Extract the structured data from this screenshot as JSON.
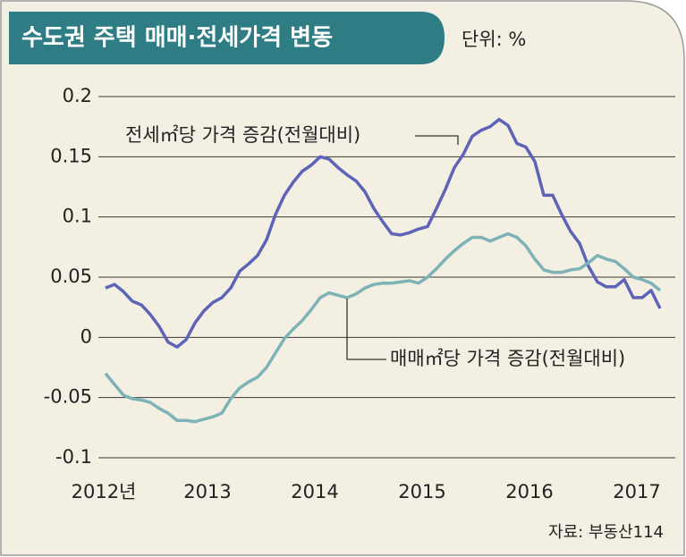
{
  "chart_data": {
    "type": "line",
    "title": "수도권 주택 매매·전세가격 변동",
    "unit": "단위: %",
    "source": "자료: 부동산114",
    "categories": [
      "2012년",
      null,
      null,
      null,
      null,
      null,
      null,
      null,
      null,
      null,
      null,
      null,
      "2013",
      null,
      null,
      null,
      null,
      null,
      null,
      null,
      null,
      null,
      null,
      null,
      "2014",
      null,
      null,
      null,
      null,
      null,
      null,
      null,
      null,
      null,
      null,
      null,
      "2015",
      null,
      null,
      null,
      null,
      null,
      null,
      null,
      null,
      null,
      null,
      null,
      "2016",
      null,
      null,
      null,
      null,
      null,
      null,
      null,
      null,
      null,
      null,
      null,
      "2017",
      null,
      null
    ],
    "series": [
      {
        "name": "전세㎡당 가격 증감(전월대비)",
        "color": "#5d64b8",
        "values": [
          0.041,
          0.044,
          0.038,
          0.03,
          0.027,
          0.019,
          0.009,
          -0.004,
          -0.008,
          -0.002,
          0.012,
          0.022,
          0.029,
          0.033,
          0.041,
          0.055,
          0.061,
          0.068,
          0.081,
          0.102,
          0.118,
          0.129,
          0.138,
          0.143,
          0.15,
          0.148,
          0.141,
          0.135,
          0.13,
          0.121,
          0.107,
          0.096,
          0.086,
          0.085,
          0.087,
          0.09,
          0.092,
          0.107,
          0.123,
          0.141,
          0.152,
          0.167,
          0.172,
          0.175,
          0.181,
          0.176,
          0.161,
          0.158,
          0.146,
          0.118,
          0.118,
          0.102,
          0.088,
          0.078,
          0.059,
          0.046,
          0.042,
          0.042,
          0.048,
          0.033,
          0.033,
          0.039,
          0.024
        ]
      },
      {
        "name": "매매㎡당 가격 증감(전월대비)",
        "color": "#7db3b6",
        "values": [
          -0.03,
          -0.039,
          -0.048,
          -0.051,
          -0.052,
          -0.054,
          -0.059,
          -0.063,
          -0.069,
          -0.069,
          -0.07,
          -0.068,
          -0.066,
          -0.063,
          -0.051,
          -0.042,
          -0.037,
          -0.033,
          -0.025,
          -0.013,
          -0.001,
          0.007,
          0.014,
          0.023,
          0.033,
          0.037,
          0.035,
          0.033,
          0.036,
          0.041,
          0.044,
          0.045,
          0.045,
          0.046,
          0.047,
          0.045,
          0.05,
          0.057,
          0.065,
          0.072,
          0.078,
          0.083,
          0.083,
          0.08,
          0.083,
          0.086,
          0.083,
          0.076,
          0.065,
          0.056,
          0.054,
          0.054,
          0.056,
          0.057,
          0.062,
          0.068,
          0.065,
          0.063,
          0.057,
          0.05,
          0.048,
          0.045,
          0.039
        ]
      }
    ],
    "ylim": [
      -0.1,
      0.2
    ],
    "yticks": [
      0.2,
      0.15,
      0.1,
      0.05,
      0,
      -0.05,
      -0.1
    ],
    "grid": true
  }
}
